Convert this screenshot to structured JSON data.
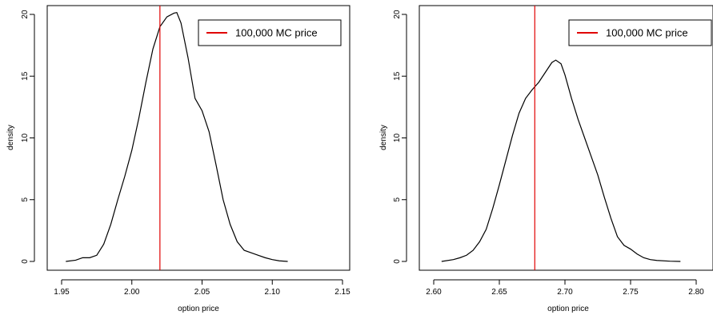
{
  "chart_data": [
    {
      "type": "line",
      "xlabel": "option price",
      "ylabel": "density",
      "xlim": [
        1.95,
        2.15
      ],
      "ylim": [
        0,
        20
      ],
      "xticks": [
        "1.95",
        "2.00",
        "2.05",
        "2.10",
        "2.15"
      ],
      "yticks": [
        "0",
        "5",
        "10",
        "15",
        "20"
      ],
      "legend": {
        "label": "100,000 MC price",
        "color": "#e00000",
        "placement": "top-right"
      },
      "reference_line": {
        "x": 2.02,
        "color": "#e00000"
      },
      "series": [
        {
          "color": "#000000",
          "x": [
            1.953,
            1.96,
            1.965,
            1.97,
            1.975,
            1.98,
            1.985,
            1.99,
            1.995,
            2.0,
            2.005,
            2.01,
            2.015,
            2.02,
            2.025,
            2.03,
            2.032,
            2.035,
            2.04,
            2.045,
            2.05,
            2.055,
            2.06,
            2.065,
            2.07,
            2.075,
            2.08,
            2.085,
            2.09,
            2.095,
            2.1,
            2.105,
            2.111
          ],
          "y": [
            0.0,
            0.1,
            0.3,
            0.3,
            0.5,
            1.4,
            3.0,
            5.0,
            6.9,
            9.0,
            11.6,
            14.5,
            17.2,
            19.0,
            19.8,
            20.1,
            20.15,
            19.3,
            16.5,
            13.2,
            12.2,
            10.5,
            7.8,
            5.0,
            3.0,
            1.6,
            0.9,
            0.7,
            0.5,
            0.3,
            0.15,
            0.05,
            0.0
          ]
        }
      ]
    },
    {
      "type": "line",
      "xlabel": "option price",
      "ylabel": "density",
      "xlim": [
        2.6,
        2.8
      ],
      "ylim": [
        0,
        20
      ],
      "xticks": [
        "2.60",
        "2.65",
        "2.70",
        "2.75",
        "2.80"
      ],
      "yticks": [
        "0",
        "5",
        "10",
        "15",
        "20"
      ],
      "legend": {
        "label": "100,000 MC price",
        "color": "#e00000",
        "placement": "top-right"
      },
      "reference_line": {
        "x": 2.677,
        "color": "#e00000"
      },
      "series": [
        {
          "color": "#000000",
          "x": [
            2.606,
            2.615,
            2.62,
            2.625,
            2.63,
            2.635,
            2.64,
            2.645,
            2.65,
            2.655,
            2.66,
            2.665,
            2.67,
            2.675,
            2.68,
            2.685,
            2.69,
            2.693,
            2.697,
            2.7,
            2.705,
            2.71,
            2.715,
            2.72,
            2.725,
            2.73,
            2.735,
            2.74,
            2.745,
            2.75,
            2.755,
            2.76,
            2.765,
            2.77,
            2.78,
            2.788
          ],
          "y": [
            0.0,
            0.15,
            0.3,
            0.5,
            0.9,
            1.6,
            2.6,
            4.3,
            6.2,
            8.2,
            10.2,
            12.0,
            13.2,
            13.9,
            14.5,
            15.3,
            16.1,
            16.3,
            16.0,
            15.1,
            13.2,
            11.5,
            10.0,
            8.5,
            7.0,
            5.2,
            3.5,
            2.0,
            1.3,
            1.0,
            0.6,
            0.3,
            0.15,
            0.08,
            0.02,
            0.0
          ]
        }
      ]
    }
  ]
}
